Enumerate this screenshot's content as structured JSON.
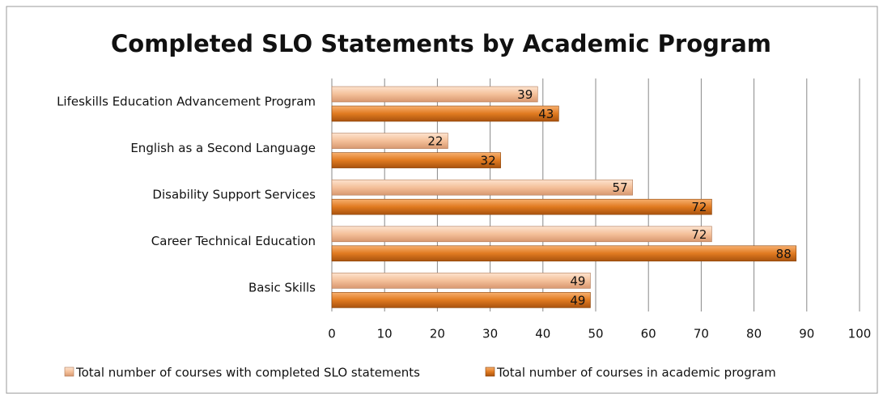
{
  "chart_data": {
    "type": "bar",
    "orientation": "horizontal",
    "title": "Completed SLO Statements by Academic Program",
    "categories": [
      "Lifeskills Education Advancement Program",
      "English as a Second Language",
      "Disability Support Services",
      "Career Technical Education",
      "Basic Skills"
    ],
    "series": [
      {
        "name": "Total number of courses with completed SLO statements",
        "color": "#f4c09a",
        "values": [
          39,
          22,
          57,
          72,
          49
        ]
      },
      {
        "name": "Total number of courses in academic program",
        "color": "#e07a20",
        "values": [
          43,
          32,
          72,
          88,
          49
        ]
      }
    ],
    "xlim": [
      0,
      100
    ],
    "xticks": [
      0,
      10,
      20,
      30,
      40,
      50,
      60,
      70,
      80,
      90,
      100
    ],
    "grid": true,
    "legend": "bottom"
  }
}
